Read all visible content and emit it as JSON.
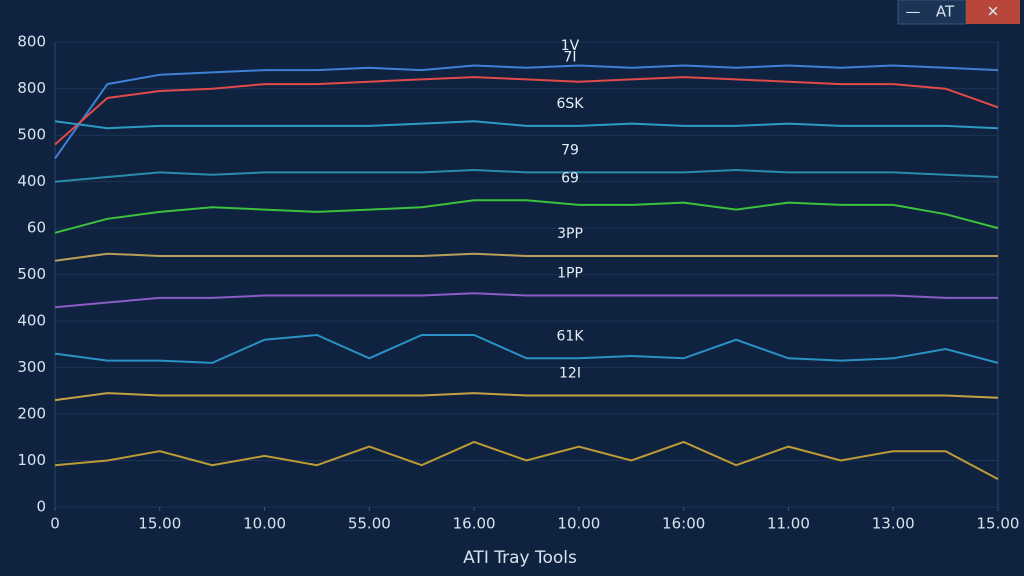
{
  "window": {
    "buttons": [
      "—",
      "AT",
      "✕"
    ],
    "title": "ATI Tray Tools"
  },
  "chart_data": {
    "type": "line",
    "x": [
      0,
      0.5,
      1,
      1.5,
      2,
      2.5,
      3,
      3.5,
      4,
      4.5,
      5,
      5.5,
      6,
      6.5,
      7,
      7.5,
      8,
      8.5,
      9
    ],
    "xlim": [
      0,
      9
    ],
    "xticks": [
      0,
      {
        "value": 1,
        "label": "15.00"
      },
      {
        "value": 2,
        "label": "10.00"
      },
      {
        "value": 3,
        "label": "55.00"
      },
      {
        "value": 4,
        "label": "16.00"
      },
      {
        "value": 5,
        "label": "10.00"
      },
      {
        "value": 6,
        "label": "16:00"
      },
      {
        "value": 7,
        "label": "11.00"
      },
      {
        "value": 8,
        "label": "13.00"
      },
      {
        "value": 9,
        "label": "15.00"
      }
    ],
    "ylim": [
      0,
      10.5
    ],
    "yticks": [
      {
        "value": 0,
        "label": "0"
      },
      {
        "value": 1,
        "label": "100"
      },
      {
        "value": 2,
        "label": "200"
      },
      {
        "value": 3,
        "label": "300"
      },
      {
        "value": 4,
        "label": "400"
      },
      {
        "value": 5,
        "label": "500"
      },
      {
        "value": 6,
        "label": "60"
      },
      {
        "value": 7,
        "label": "400"
      },
      {
        "value": 8,
        "label": "500"
      },
      {
        "value": 9,
        "label": "800"
      },
      {
        "value": 10,
        "label": "800"
      }
    ],
    "grid": true,
    "series": [
      {
        "color": "#3f80d4",
        "values": [
          7.5,
          9.1,
          9.3,
          9.35,
          9.4,
          9.4,
          9.45,
          9.4,
          9.5,
          9.45,
          9.5,
          9.45,
          9.5,
          9.45,
          9.5,
          9.45,
          9.5,
          9.45,
          9.4
        ]
      },
      {
        "color": "#e04a4a",
        "values": [
          7.8,
          8.8,
          8.95,
          9.0,
          9.1,
          9.1,
          9.15,
          9.2,
          9.25,
          9.2,
          9.15,
          9.2,
          9.25,
          9.2,
          9.15,
          9.1,
          9.1,
          9.0,
          8.6
        ]
      },
      {
        "color": "#2c9cc4",
        "values": [
          8.3,
          8.15,
          8.2,
          8.2,
          8.2,
          8.2,
          8.2,
          8.25,
          8.3,
          8.2,
          8.2,
          8.25,
          8.2,
          8.2,
          8.25,
          8.2,
          8.2,
          8.2,
          8.15
        ]
      },
      {
        "color": "#2a8cac",
        "values": [
          7.0,
          7.1,
          7.2,
          7.15,
          7.2,
          7.2,
          7.2,
          7.2,
          7.25,
          7.2,
          7.2,
          7.2,
          7.2,
          7.25,
          7.2,
          7.2,
          7.2,
          7.15,
          7.1
        ]
      },
      {
        "color": "#3cc23c",
        "values": [
          5.9,
          6.2,
          6.35,
          6.45,
          6.4,
          6.35,
          6.4,
          6.45,
          6.6,
          6.6,
          6.5,
          6.5,
          6.55,
          6.4,
          6.55,
          6.5,
          6.5,
          6.3,
          6.0
        ]
      },
      {
        "color": "#b8a058",
        "values": [
          5.3,
          5.45,
          5.4,
          5.4,
          5.4,
          5.4,
          5.4,
          5.4,
          5.45,
          5.4,
          5.4,
          5.4,
          5.4,
          5.4,
          5.4,
          5.4,
          5.4,
          5.4,
          5.4
        ]
      },
      {
        "color": "#8a5cc4",
        "values": [
          4.3,
          4.4,
          4.5,
          4.5,
          4.55,
          4.55,
          4.55,
          4.55,
          4.6,
          4.55,
          4.55,
          4.55,
          4.55,
          4.55,
          4.55,
          4.55,
          4.55,
          4.5,
          4.5
        ]
      },
      {
        "color": "#2a92c4",
        "values": [
          3.3,
          3.15,
          3.15,
          3.1,
          3.6,
          3.7,
          3.2,
          3.7,
          3.7,
          3.2,
          3.2,
          3.25,
          3.2,
          3.6,
          3.2,
          3.15,
          3.2,
          3.4,
          3.1
        ]
      },
      {
        "color": "#c4a244",
        "values": [
          2.3,
          2.45,
          2.4,
          2.4,
          2.4,
          2.4,
          2.4,
          2.4,
          2.45,
          2.4,
          2.4,
          2.4,
          2.4,
          2.4,
          2.4,
          2.4,
          2.4,
          2.4,
          2.35
        ]
      },
      {
        "color": "#bc9c34",
        "values": [
          0.9,
          1.0,
          1.2,
          0.9,
          1.1,
          0.9,
          1.3,
          0.9,
          1.4,
          1.0,
          1.3,
          1.0,
          1.4,
          0.9,
          1.3,
          1.0,
          1.2,
          1.2,
          0.6
        ]
      }
    ],
    "annotations": [
      "1V",
      "7I",
      "6SK",
      "79",
      "69",
      "3PP",
      "1PP",
      "61K",
      "12I"
    ]
  }
}
